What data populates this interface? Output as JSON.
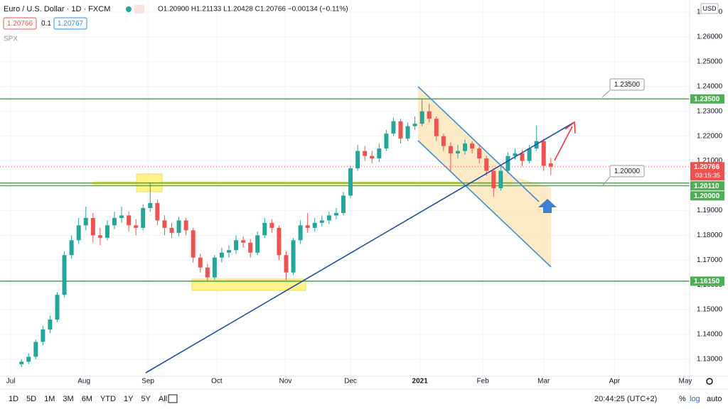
{
  "header": {
    "symbol": "Euro / U.S. Dollar · 1D · FXCM",
    "ohlc": "O1.20900 H1.21133 L1.20428 C1.20766 −0.00134 (−0.11%)",
    "bid": "1.20766",
    "spread": "0.1",
    "ask": "1.20767",
    "study": "SPX",
    "currency": "USD"
  },
  "callouts": [
    "1.23500",
    "1.20000"
  ],
  "toolbar": {
    "ranges": [
      "1D",
      "5D",
      "1M",
      "3M",
      "6M",
      "YTD",
      "1Y",
      "5Y",
      "All"
    ],
    "clock": "20:44:25 (UTC+2)",
    "percent": "%",
    "log": "log",
    "auto": "auto"
  },
  "chart_data": {
    "type": "candlestick",
    "series": [
      {
        "name": "EURUSD",
        "open": [
          1.128,
          1.129,
          1.131,
          1.137,
          1.142,
          1.146,
          1.156,
          1.172,
          1.178,
          1.184,
          1.187,
          1.18,
          1.179,
          1.184,
          1.187,
          1.188,
          1.184,
          1.183,
          1.191,
          1.193,
          1.186,
          1.183,
          1.181,
          1.186,
          1.182,
          1.171,
          1.167,
          1.163,
          1.171,
          1.173,
          1.174,
          1.178,
          1.177,
          1.173,
          1.18,
          1.185,
          1.183,
          1.172,
          1.165,
          1.178,
          1.184,
          1.183,
          1.185,
          1.186,
          1.188,
          1.189,
          1.196,
          1.207,
          1.214,
          1.212,
          1.211,
          1.215,
          1.221,
          1.226,
          1.219,
          1.224,
          1.225,
          1.23,
          1.227,
          1.22,
          1.216,
          1.213,
          1.214,
          1.217,
          1.215,
          1.211,
          1.206,
          1.199,
          1.206,
          1.212,
          1.213,
          1.21,
          1.215,
          1.218,
          1.209
        ],
        "high": [
          1.13,
          1.1325,
          1.138,
          1.1435,
          1.1475,
          1.157,
          1.1735,
          1.18,
          1.187,
          1.1915,
          1.189,
          1.183,
          1.186,
          1.1895,
          1.1915,
          1.1895,
          1.1865,
          1.1925,
          1.2011,
          1.1945,
          1.188,
          1.185,
          1.1875,
          1.187,
          1.183,
          1.1725,
          1.1685,
          1.172,
          1.175,
          1.176,
          1.18,
          1.1795,
          1.1785,
          1.1815,
          1.187,
          1.1865,
          1.184,
          1.1735,
          1.179,
          1.186,
          1.189,
          1.187,
          1.188,
          1.1895,
          1.191,
          1.1975,
          1.208,
          1.2165,
          1.216,
          1.214,
          1.217,
          1.2225,
          1.2275,
          1.227,
          1.2255,
          1.228,
          1.2349,
          1.233,
          1.228,
          1.221,
          1.2175,
          1.2165,
          1.2185,
          1.218,
          1.216,
          1.212,
          1.207,
          1.2075,
          1.2135,
          1.215,
          1.2145,
          1.2165,
          1.2243,
          1.219,
          1.2113
        ],
        "low": [
          1.1268,
          1.128,
          1.13,
          1.1355,
          1.1405,
          1.145,
          1.155,
          1.1705,
          1.1765,
          1.182,
          1.177,
          1.176,
          1.178,
          1.1825,
          1.185,
          1.1815,
          1.18,
          1.182,
          1.1895,
          1.184,
          1.18,
          1.179,
          1.1795,
          1.18,
          1.169,
          1.165,
          1.1612,
          1.162,
          1.169,
          1.171,
          1.1725,
          1.175,
          1.171,
          1.172,
          1.179,
          1.181,
          1.17,
          1.162,
          1.164,
          1.1765,
          1.181,
          1.1815,
          1.1835,
          1.1845,
          1.1865,
          1.188,
          1.195,
          1.206,
          1.21,
          1.209,
          1.2095,
          1.214,
          1.22,
          1.217,
          1.218,
          1.2225,
          1.224,
          1.2255,
          1.218,
          1.214,
          1.206,
          1.211,
          1.2125,
          1.213,
          1.209,
          1.204,
          1.1955,
          1.198,
          1.205,
          1.2105,
          1.208,
          1.209,
          1.214,
          1.206,
          1.2043
        ],
        "close": [
          1.129,
          1.131,
          1.137,
          1.142,
          1.146,
          1.156,
          1.172,
          1.178,
          1.184,
          1.187,
          1.18,
          1.179,
          1.184,
          1.187,
          1.188,
          1.184,
          1.183,
          1.191,
          1.193,
          1.186,
          1.183,
          1.181,
          1.186,
          1.182,
          1.171,
          1.167,
          1.163,
          1.171,
          1.173,
          1.174,
          1.178,
          1.177,
          1.173,
          1.18,
          1.185,
          1.183,
          1.172,
          1.165,
          1.178,
          1.184,
          1.183,
          1.185,
          1.186,
          1.188,
          1.189,
          1.196,
          1.207,
          1.214,
          1.212,
          1.211,
          1.215,
          1.221,
          1.226,
          1.219,
          1.224,
          1.225,
          1.23,
          1.227,
          1.22,
          1.216,
          1.213,
          1.214,
          1.217,
          1.215,
          1.211,
          1.206,
          1.199,
          1.206,
          1.212,
          1.213,
          1.21,
          1.215,
          1.218,
          1.208,
          1.2077
        ]
      }
    ],
    "up_color": "#26a69a",
    "down_color": "#ef5350",
    "grid": true,
    "xlim": [
      -3,
      93.4
    ],
    "xticks": [
      {
        "value": -1.5,
        "label": "Jul"
      },
      {
        "value": 8.74,
        "label": "Aug"
      },
      {
        "value": 17.68,
        "label": "Sep"
      },
      {
        "value": 27.3,
        "label": "Oct"
      },
      {
        "value": 36.9,
        "label": "Nov"
      },
      {
        "value": 46.0,
        "label": "Dec"
      },
      {
        "value": 55.7,
        "label": "2021"
      },
      {
        "value": 64.5,
        "label": "Feb"
      },
      {
        "value": 73.0,
        "label": "Mar"
      },
      {
        "value": 82.9,
        "label": "Apr"
      },
      {
        "value": 92.8,
        "label": "May"
      }
    ],
    "ylim": [
      1.1231,
      1.2749
    ],
    "yticks": [
      {
        "value": 1.13,
        "label": "1.13000"
      },
      {
        "value": 1.14,
        "label": "1.14000"
      },
      {
        "value": 1.15,
        "label": "1.15000"
      },
      {
        "value": 1.16,
        "label": "1.16000"
      },
      {
        "value": 1.17,
        "label": "1.17000"
      },
      {
        "value": 1.18,
        "label": "1.18000"
      },
      {
        "value": 1.19,
        "label": "1.19000"
      },
      {
        "value": 1.2,
        "label": "1.20000"
      },
      {
        "value": 1.21,
        "label": "1.21000"
      },
      {
        "value": 1.22,
        "label": "1.22000"
      },
      {
        "value": 1.23,
        "label": "1.23000"
      },
      {
        "value": 1.24,
        "label": "1.24000"
      },
      {
        "value": 1.25,
        "label": "1.25000"
      },
      {
        "value": 1.26,
        "label": "1.26000"
      },
      {
        "value": 1.27,
        "label": "1.27000"
      }
    ],
    "price_levels": [
      {
        "value": 1.235,
        "label": "1.23500",
        "color": "#4caf50"
      },
      {
        "value": 1.20766,
        "label": "1.20766",
        "countdown": "03:15:35",
        "color": "#ef5350"
      },
      {
        "value": 1.2011,
        "label": "1.20110",
        "color": "#4caf50"
      },
      {
        "value": 1.2,
        "label": "1.20000",
        "color": "#4caf50"
      },
      {
        "value": 1.1615,
        "label": "1.16150",
        "color": "#4caf50"
      }
    ]
  }
}
